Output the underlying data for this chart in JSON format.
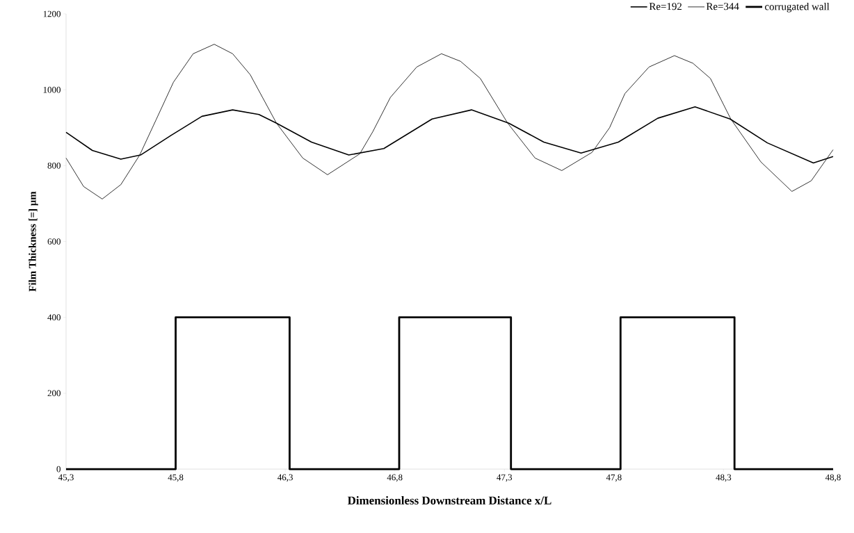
{
  "chart_data": {
    "type": "line",
    "xlabel": "Dimensionless Downstream Distance x/L",
    "ylabel": "Film Thickness [=] μm",
    "xlim": [
      45.3,
      48.8
    ],
    "xticks": [
      {
        "value": 45.3,
        "label": "45,3"
      },
      {
        "value": 45.8,
        "label": "45,8"
      },
      {
        "value": 46.3,
        "label": "46,3"
      },
      {
        "value": 46.8,
        "label": "46,8"
      },
      {
        "value": 47.3,
        "label": "47,3"
      },
      {
        "value": 47.8,
        "label": "47,8"
      },
      {
        "value": 48.3,
        "label": "48,3"
      },
      {
        "value": 48.8,
        "label": "48,8"
      }
    ],
    "ylim": [
      0,
      1200
    ],
    "yticks": [
      0,
      200,
      400,
      600,
      800,
      1000,
      1200
    ],
    "grid": false,
    "legend": "top right",
    "marker": "none",
    "line_style": "solid",
    "series": [
      {
        "name": "Re=192",
        "color": "#000000",
        "x": [
          45.3,
          45.42,
          45.55,
          45.64,
          45.78,
          45.92,
          46.06,
          46.18,
          46.26,
          46.42,
          46.59,
          46.75,
          46.97,
          47.15,
          47.32,
          47.48,
          47.65,
          47.82,
          48.0,
          48.17,
          48.33,
          48.5,
          48.71,
          48.8
        ],
        "values": [
          888,
          840,
          817,
          828,
          880,
          930,
          947,
          935,
          912,
          862,
          828,
          845,
          923,
          947,
          912,
          862,
          833,
          862,
          925,
          955,
          923,
          860,
          807,
          824
        ]
      },
      {
        "name": "Re=344",
        "color": "#000000",
        "x": [
          45.3,
          45.38,
          45.465,
          45.55,
          45.636,
          45.71,
          45.79,
          45.88,
          45.976,
          46.06,
          46.14,
          46.26,
          46.38,
          46.493,
          46.64,
          46.7,
          46.78,
          46.9,
          47.013,
          47.1,
          47.19,
          47.315,
          47.44,
          47.562,
          47.7,
          47.78,
          47.85,
          47.96,
          48.076,
          48.16,
          48.24,
          48.333,
          48.47,
          48.612,
          48.7,
          48.8
        ],
        "values": [
          820,
          745,
          712,
          750,
          828,
          920,
          1020,
          1095,
          1120,
          1095,
          1040,
          912,
          820,
          776,
          831,
          890,
          980,
          1060,
          1095,
          1075,
          1030,
          912,
          820,
          787,
          835,
          900,
          990,
          1060,
          1090,
          1070,
          1030,
          923,
          810,
          732,
          760,
          842
        ]
      },
      {
        "name": "corrugated wall",
        "color": "#000000",
        "x": [
          45.3,
          45.8,
          45.8,
          46.32,
          46.32,
          46.82,
          46.82,
          47.33,
          47.33,
          47.83,
          47.83,
          48.35,
          48.35,
          48.8
        ],
        "values": [
          0,
          0,
          400,
          400,
          0,
          0,
          400,
          400,
          0,
          0,
          400,
          400,
          0,
          0
        ]
      }
    ]
  }
}
